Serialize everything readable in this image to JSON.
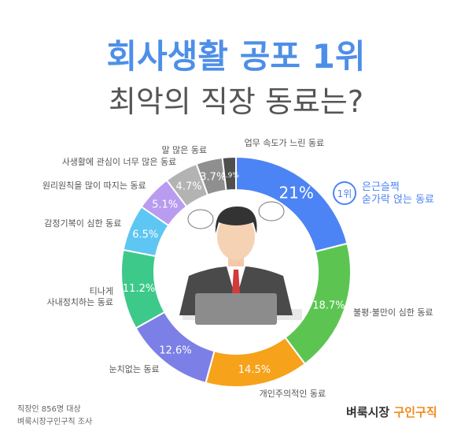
{
  "title": "회사생활 공포 1위",
  "subtitle": "최악의 직장 동료는?",
  "chart_data": {
    "type": "donut",
    "categories": [
      "은근슬쩍\n숟가락 얹는 동료",
      "불평·불만이 심한 동료",
      "개인주의적인 동료",
      "눈치없는 동료",
      "티나게\n사내정치하는 동료",
      "감정기복이 심한 동료",
      "원리원칙을 많이 따지는 동료",
      "사생활에 관심이 너무 많은 동료",
      "말 많은 동료",
      "업무 속도가 느린 동료"
    ],
    "values": [
      21,
      18.7,
      14.5,
      12.6,
      11.2,
      6.5,
      5.1,
      4.7,
      3.7,
      1.9
    ],
    "value_labels": [
      "21%",
      "18.7%",
      "14.5%",
      "12.6%",
      "11.2%",
      "6.5%",
      "5.1%",
      "4.7%",
      "3.7%",
      "1.9%"
    ],
    "colors": [
      "#4d84f5",
      "#5cc552",
      "#f7a21b",
      "#7c7fe6",
      "#3dc98a",
      "#5ec6f2",
      "#b99cef",
      "#b3b3b3",
      "#8f8f8f",
      "#4f4f4f"
    ],
    "annotation": "1위"
  },
  "footnote": [
    "직장인 856명 대상",
    "벼룩시장구인구직 조사"
  ],
  "logo": {
    "brand": "벼룩시장",
    "service": "구인구직"
  }
}
